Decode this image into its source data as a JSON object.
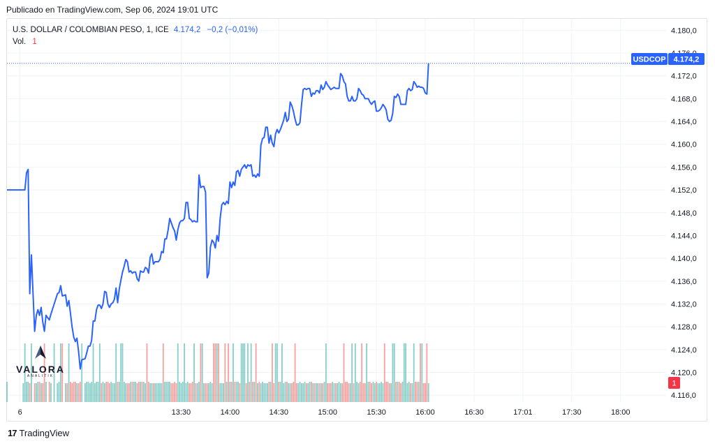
{
  "header": {
    "published": "Publicado en TradingView.com, Sep 06, 2024 19:01 UTC"
  },
  "legend": {
    "symbol": "U.S. DOLLAR / COLOMBIAN PESO, 1, ICE",
    "last": "4.174,2",
    "change": "−0,2 (−0,01%)",
    "volume_label": "Vol.",
    "volume_value": "1"
  },
  "price_tag": {
    "ticker": "USDCOP",
    "value": "4.174,2"
  },
  "volume_tag": "1",
  "footer": {
    "brand": "TradingView",
    "logo_glyph": "17"
  },
  "watermark": {
    "name": "VALORA",
    "sub": "ANALITIK"
  },
  "colors": {
    "line": "#2962ff",
    "up_volume": "#26a69a",
    "down_volume": "#ef5350",
    "grid": "#f0f3fa"
  },
  "chart_data": {
    "type": "line",
    "title": "U.S. DOLLAR / COLOMBIAN PESO, 1, ICE",
    "ylim": [
      4114.8,
      4182.0
    ],
    "y_ticks": [
      4116.0,
      4120.0,
      4124.0,
      4128.0,
      4132.0,
      4136.0,
      4140.0,
      4144.0,
      4148.0,
      4152.0,
      4156.0,
      4160.0,
      4164.0,
      4168.0,
      4172.0,
      4176.0,
      4180.0
    ],
    "y_tick_labels": [
      "4.116,0",
      "4.120,0",
      "4.124,0",
      "4.128,0",
      "4.132,0",
      "4.136,0",
      "4.140,0",
      "4.144,0",
      "4.148,0",
      "4.152,0",
      "4.156,0",
      "4.160,0",
      "4.164,0",
      "4.168,0",
      "4.172,0",
      "4.176,0",
      "4.180,0"
    ],
    "x_tick_labels": [
      "6",
      "13:30",
      "14:00",
      "14:30",
      "15:00",
      "15:30",
      "16:00",
      "16:30",
      "17:01",
      "17:30",
      "18:00"
    ],
    "x_tick_minutes": [
      -99,
      0,
      30,
      60,
      90,
      120,
      150,
      180,
      210,
      240,
      270
    ],
    "x_range_minutes": [
      -107,
      298
    ],
    "last_price": 4174.2,
    "series": [
      {
        "points": [
          [
            -107,
            4152.0
          ],
          [
            -97,
            4152.0
          ],
          [
            -96,
            4152.0
          ],
          [
            -95,
            4155.0
          ],
          [
            -94,
            4155.6
          ],
          [
            -93,
            4133.8
          ],
          [
            -92,
            4140.6
          ],
          [
            -90,
            4127.2
          ],
          [
            -89,
            4130.0
          ],
          [
            -88,
            4131.0
          ],
          [
            -87,
            4130.0
          ],
          [
            -86,
            4131.4
          ],
          [
            -85,
            4128.8
          ],
          [
            -84,
            4127.2
          ],
          [
            -83,
            4130.0
          ],
          [
            -81,
            4129.2
          ],
          [
            -80,
            4130.2
          ],
          [
            -78,
            4132.0
          ],
          [
            -76,
            4133.8
          ],
          [
            -75,
            4134.0
          ],
          [
            -74,
            4135.2
          ],
          [
            -73,
            4133.4
          ],
          [
            -71,
            4133.6
          ],
          [
            -70,
            4131.6
          ],
          [
            -69,
            4132.6
          ],
          [
            -68,
            4130.4
          ],
          [
            -67,
            4128.0
          ],
          [
            -66,
            4126.2
          ],
          [
            -65,
            4125.4
          ],
          [
            -64,
            4126.0
          ],
          [
            -63,
            4123.6
          ],
          [
            -62,
            4120.6
          ],
          [
            -61,
            4122.2
          ],
          [
            -59,
            4122.4
          ],
          [
            -58,
            4123.4
          ],
          [
            -57,
            4124.6
          ],
          [
            -56,
            4124.6
          ],
          [
            -55,
            4125.6
          ],
          [
            -54,
            4129.0
          ],
          [
            -53,
            4129.0
          ],
          [
            -52,
            4131.0
          ],
          [
            -51,
            4131.8
          ],
          [
            -50,
            4131.8
          ],
          [
            -49,
            4131.2
          ],
          [
            -48,
            4132.0
          ],
          [
            -47,
            4134.2
          ],
          [
            -46,
            4134.0
          ],
          [
            -45,
            4132.0
          ],
          [
            -44,
            4131.4
          ],
          [
            -43,
            4132.0
          ],
          [
            -42,
            4132.2
          ],
          [
            -41,
            4132.8
          ],
          [
            -40,
            4134.8
          ],
          [
            -39,
            4132.2
          ],
          [
            -38,
            4134.6
          ],
          [
            -37,
            4136.2
          ],
          [
            -36,
            4137.6
          ],
          [
            -35,
            4138.6
          ],
          [
            -34,
            4139.8
          ],
          [
            -33,
            4139.4
          ],
          [
            -32,
            4137.6
          ],
          [
            -31,
            4137.8
          ],
          [
            -30,
            4137.4
          ],
          [
            -29,
            4137.6
          ],
          [
            -28,
            4137.6
          ],
          [
            -27,
            4136.4
          ],
          [
            -26,
            4136.0
          ],
          [
            -25,
            4137.8
          ],
          [
            -24,
            4137.6
          ],
          [
            -23,
            4137.6
          ],
          [
            -22,
            4138.4
          ],
          [
            -21,
            4138.2
          ],
          [
            -20,
            4137.4
          ],
          [
            -19,
            4140.2
          ],
          [
            -18,
            4140.8
          ],
          [
            -17,
            4139.0
          ],
          [
            -16,
            4139.4
          ],
          [
            -15,
            4139.4
          ],
          [
            -14,
            4139.4
          ],
          [
            -13,
            4139.8
          ],
          [
            -12,
            4141.2
          ],
          [
            -11,
            4141.0
          ],
          [
            -10,
            4143.4
          ],
          [
            -9,
            4143.4
          ],
          [
            -8,
            4145.0
          ],
          [
            -7,
            4147.0
          ],
          [
            -6,
            4146.2
          ],
          [
            -5,
            4145.4
          ],
          [
            -4,
            4144.8
          ],
          [
            -3,
            4143.2
          ],
          [
            -2,
            4145.0
          ],
          [
            -1,
            4146.2
          ],
          [
            0,
            4146.6
          ],
          [
            1,
            4146.6
          ],
          [
            2,
            4147.0
          ],
          [
            3,
            4149.8
          ],
          [
            4,
            4149.8
          ],
          [
            5,
            4147.0
          ],
          [
            6,
            4146.8
          ],
          [
            7,
            4146.4
          ],
          [
            8,
            4146.6
          ],
          [
            9,
            4146.4
          ],
          [
            10,
            4146.4
          ],
          [
            11,
            4154.6
          ],
          [
            12,
            4152.4
          ],
          [
            13,
            4152.6
          ],
          [
            14,
            4152.6
          ],
          [
            15,
            4151.6
          ],
          [
            16,
            4136.6
          ],
          [
            17,
            4137.4
          ],
          [
            18,
            4142.0
          ],
          [
            19,
            4143.2
          ],
          [
            20,
            4142.8
          ],
          [
            21,
            4141.8
          ],
          [
            22,
            4144.0
          ],
          [
            23,
            4143.0
          ],
          [
            24,
            4147.0
          ],
          [
            25,
            4149.4
          ],
          [
            26,
            4149.8
          ],
          [
            27,
            4149.4
          ],
          [
            28,
            4150.0
          ],
          [
            29,
            4149.6
          ],
          [
            30,
            4153.4
          ],
          [
            31,
            4152.4
          ],
          [
            32,
            4153.4
          ],
          [
            33,
            4152.8
          ],
          [
            34,
            4155.2
          ],
          [
            35,
            4155.4
          ],
          [
            36,
            4154.4
          ],
          [
            37,
            4155.6
          ],
          [
            38,
            4156.0
          ],
          [
            39,
            4156.4
          ],
          [
            40,
            4155.8
          ],
          [
            41,
            4156.4
          ],
          [
            42,
            4156.2
          ],
          [
            43,
            4156.4
          ],
          [
            44,
            4154.4
          ],
          [
            45,
            4154.6
          ],
          [
            46,
            4154.2
          ],
          [
            47,
            4154.8
          ],
          [
            48,
            4154.4
          ],
          [
            49,
            4159.8
          ],
          [
            50,
            4161.0
          ],
          [
            51,
            4161.2
          ],
          [
            52,
            4163.0
          ],
          [
            53,
            4163.0
          ],
          [
            54,
            4160.2
          ],
          [
            55,
            4161.6
          ],
          [
            56,
            4160.2
          ],
          [
            57,
            4159.6
          ],
          [
            58,
            4161.8
          ],
          [
            59,
            4162.6
          ],
          [
            60,
            4162.0
          ],
          [
            61,
            4162.6
          ],
          [
            62,
            4163.4
          ],
          [
            63,
            4164.2
          ],
          [
            64,
            4165.6
          ],
          [
            65,
            4164.0
          ],
          [
            66,
            4164.4
          ],
          [
            67,
            4167.4
          ],
          [
            68,
            4166.8
          ],
          [
            69,
            4165.8
          ],
          [
            70,
            4164.4
          ],
          [
            71,
            4163.4
          ],
          [
            72,
            4163.4
          ],
          [
            73,
            4163.8
          ],
          [
            74,
            4167.0
          ],
          [
            75,
            4169.6
          ],
          [
            76,
            4169.8
          ],
          [
            77,
            4169.6
          ],
          [
            78,
            4169.8
          ],
          [
            79,
            4169.8
          ],
          [
            80,
            4168.4
          ],
          [
            81,
            4169.0
          ],
          [
            82,
            4168.8
          ],
          [
            83,
            4169.4
          ],
          [
            84,
            4169.4
          ],
          [
            85,
            4169.0
          ],
          [
            86,
            4170.4
          ],
          [
            87,
            4169.6
          ],
          [
            88,
            4170.0
          ],
          [
            89,
            4171.0
          ],
          [
            90,
            4170.4
          ],
          [
            91,
            4170.0
          ],
          [
            92,
            4169.6
          ],
          [
            93,
            4169.8
          ],
          [
            94,
            4170.0
          ],
          [
            95,
            4169.8
          ],
          [
            96,
            4169.8
          ],
          [
            97,
            4169.8
          ],
          [
            98,
            4172.4
          ],
          [
            99,
            4172.0
          ],
          [
            100,
            4171.0
          ],
          [
            101,
            4170.6
          ],
          [
            102,
            4168.4
          ],
          [
            103,
            4167.6
          ],
          [
            104,
            4167.6
          ],
          [
            105,
            4168.4
          ],
          [
            106,
            4167.6
          ],
          [
            107,
            4167.6
          ],
          [
            108,
            4168.0
          ],
          [
            109,
            4169.8
          ],
          [
            110,
            4169.4
          ],
          [
            111,
            4168.8
          ],
          [
            112,
            4168.6
          ],
          [
            113,
            4168.0
          ],
          [
            114,
            4168.0
          ],
          [
            115,
            4168.0
          ],
          [
            116,
            4167.4
          ],
          [
            117,
            4167.0
          ],
          [
            118,
            4167.4
          ],
          [
            119,
            4167.6
          ],
          [
            120,
            4165.8
          ],
          [
            121,
            4165.8
          ],
          [
            122,
            4166.0
          ],
          [
            123,
            4166.4
          ],
          [
            124,
            4167.0
          ],
          [
            125,
            4166.6
          ],
          [
            126,
            4166.0
          ],
          [
            127,
            4164.4
          ],
          [
            128,
            4164.0
          ],
          [
            129,
            4164.2
          ],
          [
            130,
            4165.4
          ],
          [
            131,
            4168.4
          ],
          [
            132,
            4168.2
          ],
          [
            133,
            4168.8
          ],
          [
            134,
            4168.4
          ],
          [
            135,
            4167.0
          ],
          [
            136,
            4167.0
          ],
          [
            137,
            4167.0
          ],
          [
            138,
            4167.0
          ],
          [
            139,
            4169.4
          ],
          [
            140,
            4169.8
          ],
          [
            141,
            4169.4
          ],
          [
            142,
            4169.6
          ],
          [
            143,
            4171.0
          ],
          [
            144,
            4170.6
          ],
          [
            145,
            4170.0
          ],
          [
            146,
            4170.2
          ],
          [
            147,
            4170.0
          ],
          [
            148,
            4170.0
          ],
          [
            149,
            4169.8
          ],
          [
            150,
            4169.0
          ],
          [
            151,
            4168.8
          ],
          [
            152,
            4174.2
          ]
        ]
      }
    ],
    "volume": {
      "label": "Vol.",
      "last": 1
    }
  }
}
